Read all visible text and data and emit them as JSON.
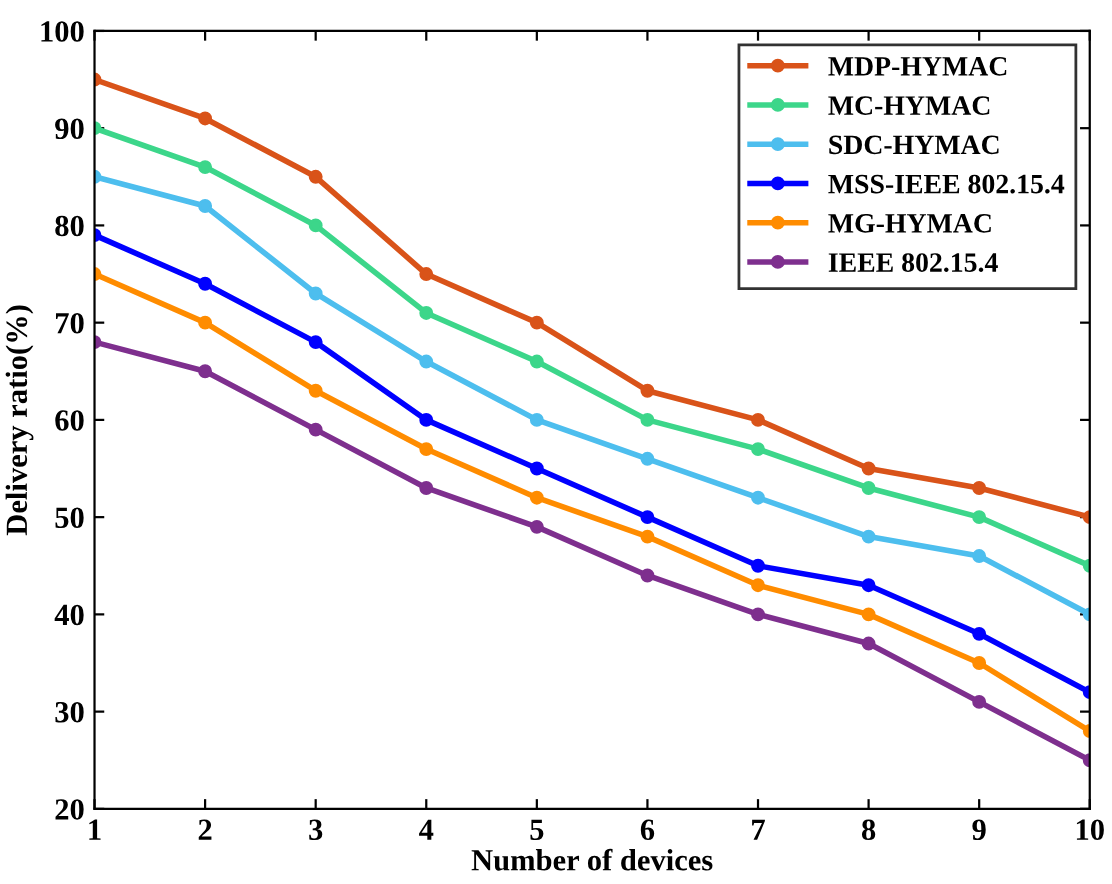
{
  "chart_data": {
    "type": "line",
    "xlabel": "Number of devices",
    "ylabel": "Delivery ratio(%)",
    "x": [
      1,
      2,
      3,
      4,
      5,
      6,
      7,
      8,
      9,
      10
    ],
    "xlim": [
      1,
      10
    ],
    "xticks": [
      1,
      2,
      3,
      4,
      5,
      6,
      7,
      8,
      9,
      10
    ],
    "ylim": [
      20,
      100
    ],
    "yticks": [
      20,
      30,
      40,
      50,
      60,
      70,
      80,
      90,
      100
    ],
    "grid": false,
    "legend": "top right",
    "marker": "circle",
    "line_style": "solid",
    "series": [
      {
        "name": "MDP-HYMAC",
        "color": "#d95319",
        "values": [
          95,
          91,
          85,
          75,
          70,
          63,
          60,
          55,
          53,
          50
        ]
      },
      {
        "name": "MC-HYMAC",
        "color": "#3cd68a",
        "values": [
          90,
          86,
          80,
          71,
          66,
          60,
          57,
          53,
          50,
          45
        ]
      },
      {
        "name": "SDC-HYMAC",
        "color": "#4dbeee",
        "values": [
          85,
          82,
          73,
          66,
          60,
          56,
          52,
          48,
          46,
          40
        ]
      },
      {
        "name": "MSS-IEEE 802.15.4",
        "color": "#0000ff",
        "values": [
          79,
          74,
          68,
          60,
          55,
          50,
          45,
          43,
          38,
          32
        ]
      },
      {
        "name": "MG-HYMAC",
        "color": "#ff8c00",
        "values": [
          75,
          70,
          63,
          57,
          52,
          48,
          43,
          40,
          35,
          28
        ]
      },
      {
        "name": "IEEE 802.15.4",
        "color": "#7e2f8e",
        "values": [
          68,
          65,
          59,
          53,
          49,
          44,
          40,
          37,
          31,
          25
        ]
      }
    ]
  }
}
